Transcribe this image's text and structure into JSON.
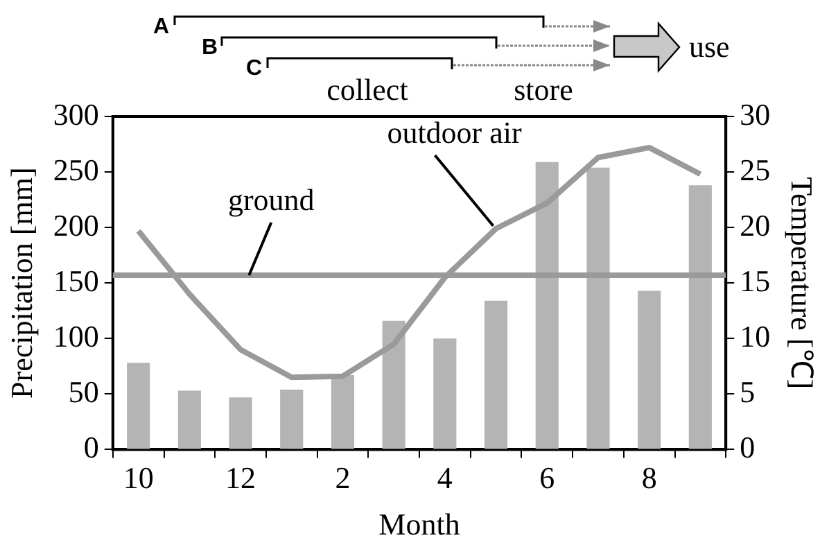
{
  "chart_data": {
    "type": "bar",
    "categories": [
      "10",
      null,
      "12",
      null,
      "2",
      null,
      "4",
      null,
      "6",
      null,
      "8",
      null
    ],
    "xlabel": "Month",
    "ylabel": "Precipitation [mm]",
    "y2label": "Temperature [℃]",
    "series": [
      {
        "color": "#b4b4b4",
        "values": [
          78,
          53,
          47,
          54,
          67,
          116,
          100,
          134,
          259,
          254,
          143,
          238
        ]
      },
      {
        "type": "line",
        "name": "outdoor air",
        "axis": "y2",
        "color": "#9a9a9a",
        "values": [
          19.7,
          14,
          9,
          6.5,
          6.6,
          9.5,
          15.5,
          19.9,
          22.2,
          26.3,
          27.2,
          24.8
        ]
      }
    ],
    "ref_lines": [
      {
        "axis": "y2",
        "value": 15.7,
        "label": "ground",
        "color": "#9a9a9a"
      }
    ],
    "ylim": [
      0,
      300
    ],
    "yticks": [
      0,
      50,
      100,
      150,
      200,
      250,
      300
    ],
    "y2lim": [
      0,
      30
    ],
    "y2ticks": [
      0,
      5,
      10,
      15,
      20,
      25,
      30
    ],
    "grid": false,
    "legend": false,
    "marker": "none",
    "line_style": "solid",
    "annotations": [
      "A",
      "B",
      "C",
      "collect",
      "store",
      "use"
    ]
  }
}
